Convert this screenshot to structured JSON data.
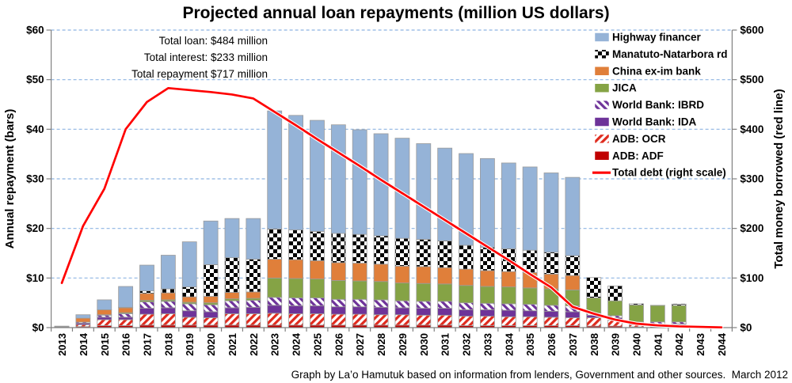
{
  "title": "Projected annual loan repayments (million US dollars)",
  "annotation": {
    "lines": [
      "Total loan: $484 million",
      "Total interest: $233 million",
      "Total repayment $717 million"
    ]
  },
  "footer": "Graph by La’o Hamutuk based on information from lenders, Government and other sources.  March 2012",
  "colors": {
    "gridline": "#8DB4E2",
    "axis": "#808080",
    "bar_outline": "#9C9C9C",
    "debt_line": "#FF0000",
    "debt_line_halo": "#FFFFFF"
  },
  "chart_data": {
    "type": "bar",
    "stacked": true,
    "grid": "horizontal dashed",
    "legend_position": "top-right inside",
    "categories": [
      2013,
      2014,
      2015,
      2016,
      2017,
      2018,
      2019,
      2020,
      2021,
      2022,
      2023,
      2024,
      2025,
      2026,
      2027,
      2028,
      2029,
      2030,
      2031,
      2032,
      2033,
      2034,
      2035,
      2036,
      2037,
      2038,
      2039,
      2040,
      2041,
      2042,
      2043,
      2044
    ],
    "left_axis": {
      "label": "Annual repayment (bars)",
      "min": 0,
      "max": 60,
      "step": 10,
      "ticks": [
        "$0",
        "$10",
        "$20",
        "$30",
        "$40",
        "$50",
        "$60"
      ]
    },
    "right_axis": {
      "label": "Total money borrowed (red line)",
      "min": 0,
      "max": 600,
      "step": 100,
      "ticks": [
        "$0",
        "$100",
        "$200",
        "$300",
        "$400",
        "$500",
        "$600"
      ]
    },
    "series": [
      {
        "key": "adb_adf",
        "name": "ADB: ADF",
        "fill": {
          "type": "solid",
          "color": "#C00000"
        },
        "values": [
          0.05,
          0.2,
          0.4,
          0.4,
          0.5,
          0.5,
          0.5,
          0.5,
          0.5,
          0.5,
          0.5,
          0.5,
          0.5,
          0.5,
          0.5,
          0.5,
          0.5,
          0.5,
          0.5,
          0.4,
          0.4,
          0.4,
          0.4,
          0.4,
          0.4,
          0.3,
          0.3,
          0.15,
          0.15,
          0.15,
          0,
          0
        ]
      },
      {
        "key": "adb_ocr",
        "name": "ADB: OCR",
        "fill": {
          "type": "hatch",
          "angle": "up",
          "color": "#DF2B1E",
          "bg": "#FFFFFF"
        },
        "values": [
          0.05,
          0.4,
          1.2,
          1.2,
          2.2,
          2.3,
          1.6,
          1.5,
          2.3,
          2.3,
          2.4,
          2.3,
          2.3,
          2.2,
          2.2,
          2.1,
          2.1,
          2.0,
          2.0,
          1.9,
          1.9,
          1.8,
          1.8,
          1.7,
          1.6,
          1.7,
          1.2,
          0.4,
          0.4,
          0.4,
          0,
          0
        ]
      },
      {
        "key": "wb_ida",
        "name": "World Bank: IDA",
        "fill": {
          "type": "solid",
          "color": "#6E3399"
        },
        "values": [
          0.1,
          0.3,
          0.5,
          0.5,
          1.2,
          1.2,
          1.3,
          1.2,
          1.2,
          1.3,
          1.6,
          1.6,
          1.6,
          1.5,
          1.5,
          1.5,
          1.4,
          1.4,
          1.4,
          1.3,
          1.3,
          1.3,
          1.2,
          1.2,
          1.2,
          0.5,
          0.5,
          0.2,
          0.2,
          0.2,
          0,
          0
        ]
      },
      {
        "key": "wb_ibrd",
        "name": "World Bank: IBRD",
        "fill": {
          "type": "hatch",
          "angle": "down",
          "color": "#6E3399",
          "bg": "#FFFFFF"
        },
        "values": [
          0.05,
          0.2,
          0.4,
          0.7,
          1.3,
          1.3,
          1.4,
          1.4,
          1.4,
          1.4,
          1.6,
          1.6,
          1.6,
          1.5,
          1.5,
          1.5,
          1.4,
          1.4,
          1.4,
          1.4,
          1.3,
          1.3,
          1.3,
          1.2,
          1.2,
          0.4,
          0.4,
          0.4,
          0.4,
          0.4,
          0,
          0
        ]
      },
      {
        "key": "jica",
        "name": "JICA",
        "fill": {
          "type": "solid",
          "color": "#85A345"
        },
        "values": [
          0,
          0,
          0.1,
          0.2,
          0.3,
          0.3,
          0.3,
          0.4,
          0.4,
          0.4,
          3.9,
          3.9,
          3.8,
          3.8,
          3.7,
          3.7,
          3.6,
          3.6,
          3.5,
          3.5,
          3.4,
          3.4,
          3.3,
          3.3,
          3.2,
          3.1,
          3.0,
          3.4,
          3.3,
          3.3,
          0,
          0
        ]
      },
      {
        "key": "china",
        "name": "China ex-im bank",
        "fill": {
          "type": "solid",
          "color": "#E07F3A"
        },
        "values": [
          0.05,
          0.8,
          1.0,
          1.0,
          1.4,
          1.4,
          1.1,
          1.3,
          1.3,
          1.3,
          3.8,
          3.8,
          3.7,
          3.6,
          3.6,
          3.5,
          3.4,
          3.4,
          3.3,
          3.3,
          3.2,
          3.1,
          3.1,
          3.0,
          2.9,
          0,
          0,
          0,
          0,
          0,
          0,
          0
        ]
      },
      {
        "key": "manatuto",
        "name": "Manatuto-Natarbora rd",
        "fill": {
          "type": "checker",
          "colors": [
            "#000000",
            "#FFFFFF"
          ]
        },
        "values": [
          0,
          0,
          0,
          0.1,
          0.5,
          0.8,
          2.0,
          6.4,
          7.0,
          6.6,
          6.1,
          6.0,
          5.9,
          5.9,
          5.8,
          5.7,
          5.6,
          5.5,
          5.4,
          4.8,
          4.7,
          4.6,
          4.5,
          4.4,
          4.0,
          4.1,
          3.0,
          0.25,
          0.05,
          0.3,
          0,
          0
        ]
      },
      {
        "key": "highway",
        "name": "Highway financer",
        "fill": {
          "type": "solid",
          "color": "#95B3D7"
        },
        "values": [
          0,
          0.7,
          2.0,
          4.2,
          5.2,
          6.8,
          9.1,
          8.8,
          7.9,
          8.2,
          23.8,
          23.1,
          22.4,
          21.9,
          21.1,
          20.6,
          20.2,
          19.3,
          18.7,
          18.5,
          17.9,
          17.3,
          16.8,
          16.0,
          15.8,
          0,
          0,
          0,
          0,
          0,
          0,
          0
        ]
      }
    ],
    "line_series": {
      "key": "total_debt",
      "name": "Total debt (right scale)",
      "axis": "right",
      "color": "#FF0000",
      "values": [
        90,
        205,
        280,
        400,
        455,
        483,
        479,
        475,
        470,
        462,
        435,
        408,
        380,
        353,
        326,
        298,
        271,
        244,
        217,
        190,
        163,
        136,
        108,
        81,
        42,
        28,
        16,
        8,
        4.5,
        2.5,
        1.5,
        0.5
      ]
    },
    "legend": [
      {
        "label": "Highway financer",
        "ref": "highway"
      },
      {
        "label": "Manatuto-Natarbora rd",
        "ref": "manatuto"
      },
      {
        "label": "China ex-im bank",
        "ref": "china"
      },
      {
        "label": "JICA",
        "ref": "jica"
      },
      {
        "label": "World Bank: IBRD",
        "ref": "wb_ibrd"
      },
      {
        "label": "World Bank: IDA",
        "ref": "wb_ida"
      },
      {
        "label": "ADB: OCR",
        "ref": "adb_ocr"
      },
      {
        "label": "ADB: ADF",
        "ref": "adb_adf"
      },
      {
        "label": "Total debt (right scale)",
        "ref": "total_debt"
      }
    ]
  }
}
